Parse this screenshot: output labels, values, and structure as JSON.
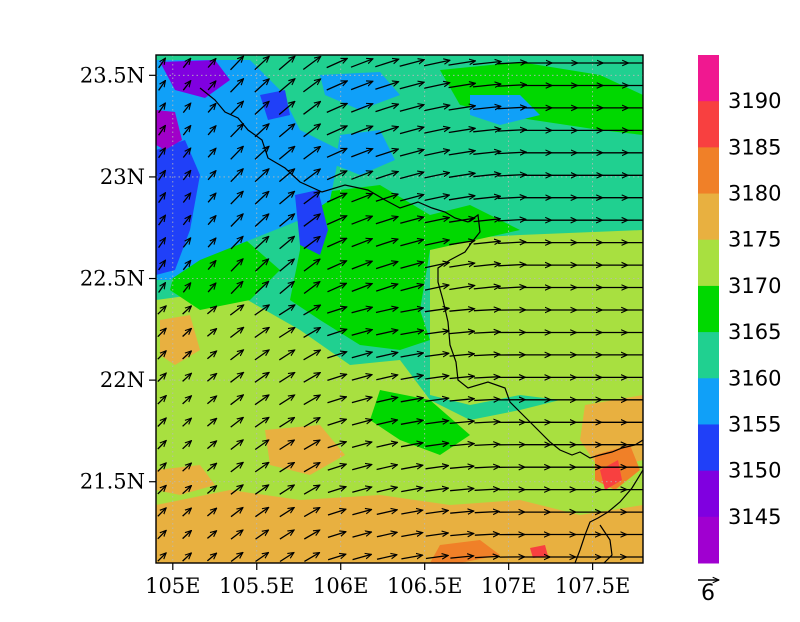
{
  "chart_data": {
    "type": "heatmap",
    "overlay": "wind vectors",
    "x_ticks": [
      "105E",
      "105.5E",
      "106E",
      "106.5E",
      "107E",
      "107.5E"
    ],
    "x_tick_values": [
      105.0,
      105.5,
      106.0,
      106.5,
      107.0,
      107.5
    ],
    "y_ticks": [
      "23.5N",
      "23N",
      "22.5N",
      "22N",
      "21.5N"
    ],
    "y_tick_values": [
      23.5,
      23.0,
      22.5,
      22.0,
      21.5
    ],
    "lon_range": [
      104.9,
      107.8
    ],
    "lat_range": [
      21.1,
      23.6
    ],
    "grid": "dotted",
    "colorbar": {
      "labels": [
        "3190",
        "3185",
        "3180",
        "3175",
        "3170",
        "3165",
        "3160",
        "3155",
        "3150",
        "3145"
      ],
      "colors_top_to_bottom": [
        "#f01890",
        "#f84040",
        "#f08028",
        "#e8b040",
        "#a8e040",
        "#00d800",
        "#20d090",
        "#10a0f8",
        "#2040f8",
        "#8000e0",
        "#a000d0"
      ]
    },
    "reference_vector": {
      "label": "6"
    },
    "palette": {
      "violet": "#a000c8",
      "purple": "#8000e0",
      "blue": "#2040f8",
      "lightblue": "#10a0f8",
      "teal": "#20d090",
      "green": "#00d800",
      "yellowgreen": "#a8e040",
      "gold": "#e8b040",
      "orange": "#f08028",
      "red": "#f84040",
      "magenta": "#f01890"
    }
  }
}
